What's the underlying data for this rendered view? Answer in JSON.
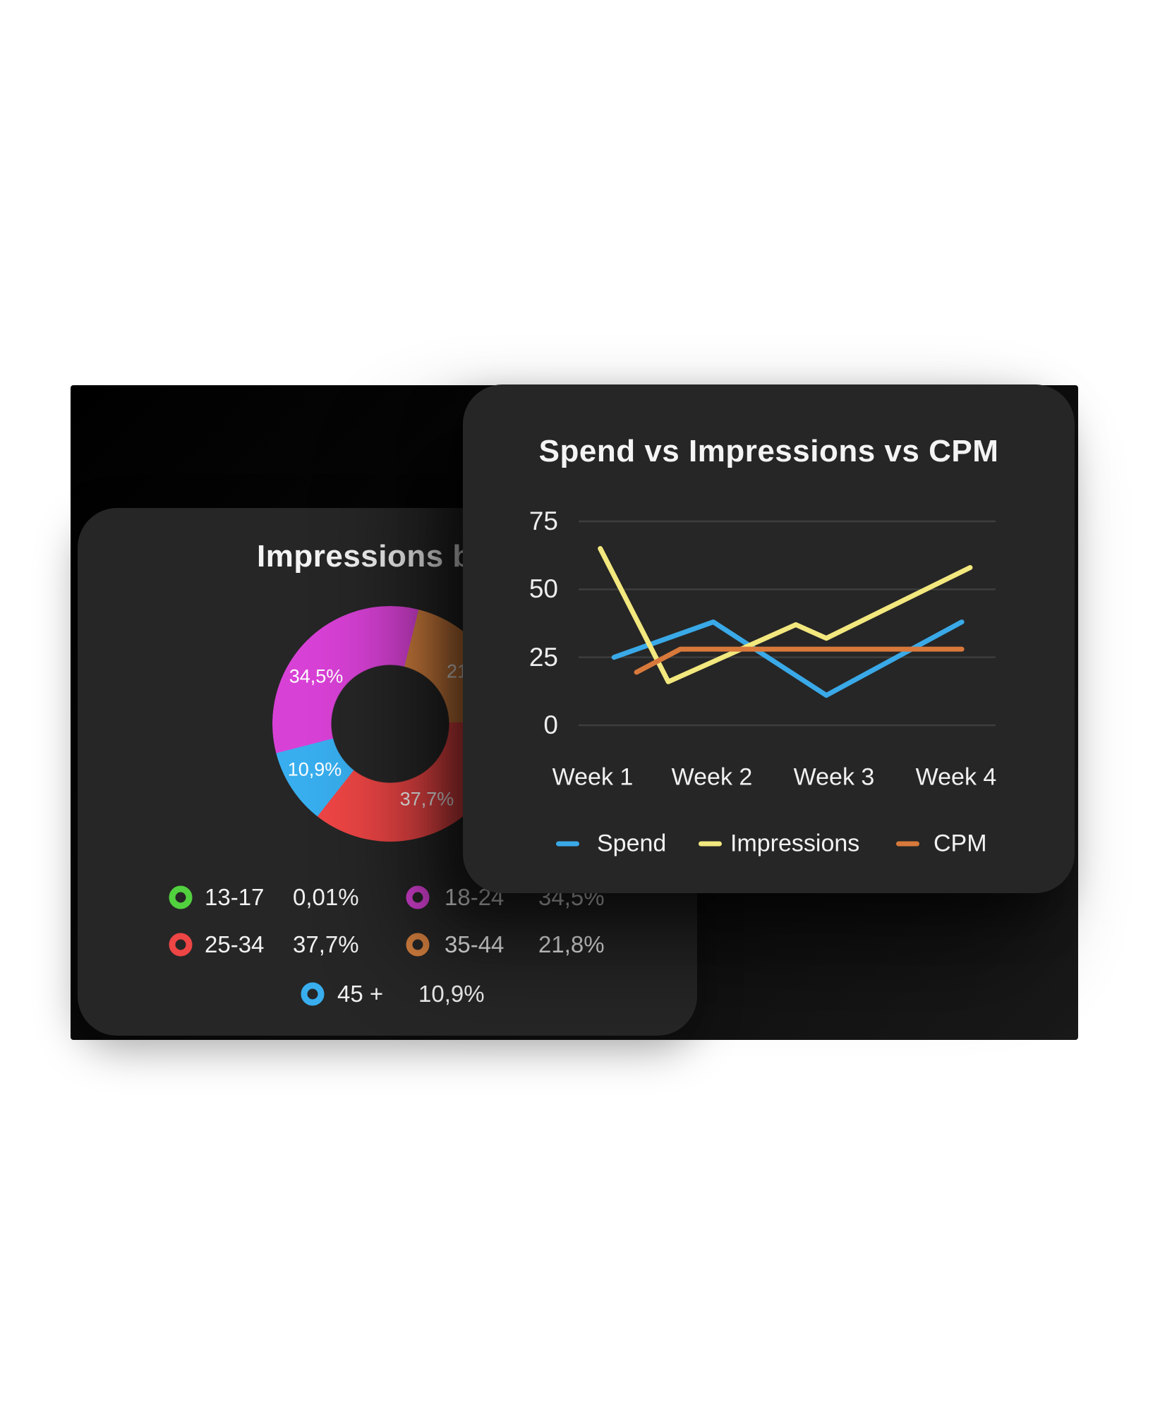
{
  "palette": {
    "card_bg": "#262626",
    "backdrop_top_left": "#000000",
    "backdrop_bottom_right": "#191919",
    "text_primary": "#f4f4f4",
    "gridline": "#3e3e3e"
  },
  "back_card": {
    "title": "Impressions by",
    "donut_labels": [
      {
        "text": "34,5%"
      },
      {
        "text": "10,9%"
      },
      {
        "text": "37,7%"
      },
      {
        "text": "21,8%"
      }
    ],
    "legend": [
      {
        "label": "13-17",
        "value": "0,01%",
        "color": "#52d13f"
      },
      {
        "label": "18-24",
        "value": "34,5%",
        "color": "#d841d6"
      },
      {
        "label": "25-34",
        "value": "37,7%",
        "color": "#ee4545"
      },
      {
        "label": "35-44",
        "value": "21,8%",
        "color": "#d6813f"
      },
      {
        "label": "45 +",
        "value": "10,9%",
        "color": "#38aeee"
      }
    ]
  },
  "front_card": {
    "title": "Spend vs Impressions vs CPM",
    "y_ticks": [
      "75",
      "50",
      "25",
      "0"
    ],
    "x_labels": [
      "Week 1",
      "Week 2",
      "Week 3",
      "Week 4"
    ],
    "legend": [
      {
        "label": "Spend",
        "color": "#3aa9e8"
      },
      {
        "label": "Impressions",
        "color": "#f3e87e"
      },
      {
        "label": "CPM",
        "color": "#d8793c"
      }
    ]
  },
  "chart_data": [
    {
      "type": "pie",
      "donut": true,
      "title": "Impressions by (age) — title partially hidden behind front card",
      "labels": [
        "13-17",
        "18-24",
        "25-34",
        "35-44",
        "45 +"
      ],
      "values": [
        0.01,
        34.5,
        37.7,
        21.8,
        10.9
      ],
      "value_labels": [
        "0,01%",
        "34,5%",
        "37,7%",
        "21,8%",
        "10,9%"
      ],
      "colors": [
        "#52d13f",
        "#d841d6",
        "#ee4545",
        "#d6813f",
        "#38aeee"
      ],
      "start_angle_deg": 14,
      "draw_order_clockwise_from_top": [
        "35-44",
        "25-34",
        "45 +",
        "18-24",
        "13-17"
      ],
      "draw_slices": [
        {
          "label": "35-44",
          "value": 21.8,
          "color": "#d6813f"
        },
        {
          "label": "25-34",
          "value": 37.7,
          "color": "#ee4545"
        },
        {
          "label": "45 +",
          "value": 10.9,
          "color": "#38aeee"
        },
        {
          "label": "18-24",
          "value": 34.5,
          "color": "#d841d6"
        },
        {
          "label": "13-17",
          "value": 0.01,
          "color": "#52d13f"
        }
      ],
      "legend_position": "bottom"
    },
    {
      "type": "line",
      "title": "Spend vs Impressions vs CPM",
      "x_categories": [
        "Week 1",
        "Week 2",
        "Week 3",
        "Week 4"
      ],
      "ylim": [
        0,
        75
      ],
      "y_ticks": [
        75,
        50,
        25,
        0
      ],
      "grid": true,
      "legend_position": "bottom",
      "series": [
        {
          "name": "Spend",
          "color": "#3aa9e8",
          "points": [
            [
              0.085,
              25
            ],
            [
              0.323,
              38
            ],
            [
              0.594,
              11
            ],
            [
              0.919,
              38
            ]
          ],
          "values_at_weeks": [
            25,
            38,
            11,
            38
          ]
        },
        {
          "name": "Impressions",
          "color": "#f3e87e",
          "points": [
            [
              0.052,
              65
            ],
            [
              0.215,
              16
            ],
            [
              0.521,
              37
            ],
            [
              0.594,
              32
            ],
            [
              0.939,
              58
            ]
          ],
          "values_at_weeks": [
            65,
            22,
            33,
            58
          ]
        },
        {
          "name": "CPM",
          "color": "#d8793c",
          "points": [
            [
              0.139,
              19.5
            ],
            [
              0.244,
              28
            ],
            [
              0.919,
              28
            ]
          ],
          "values_at_weeks": [
            20,
            28,
            28,
            28
          ]
        }
      ]
    }
  ]
}
